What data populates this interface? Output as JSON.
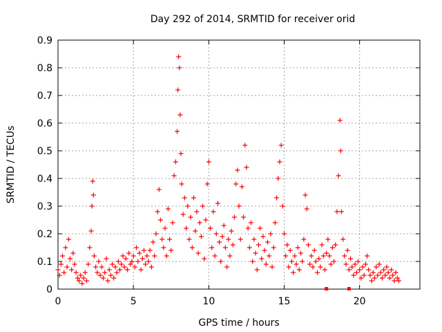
{
  "chart_data": {
    "type": "scatter",
    "title": "Day 292 of 2014, SRMTID for receiver orid",
    "xlabel": "GPS time / hours",
    "ylabel": "SRMTID / TECUs",
    "xlim": [
      0,
      24
    ],
    "ylim": [
      0,
      0.9
    ],
    "xticks": [
      0,
      5,
      10,
      15,
      20
    ],
    "yticks": [
      0,
      0.1,
      0.2,
      0.3,
      0.4,
      0.5,
      0.6,
      0.7,
      0.8,
      0.9
    ],
    "grid": true,
    "marker": "+",
    "color": "#ff0000",
    "series": [
      {
        "name": "SRMTID",
        "points": [
          [
            0.0,
            0.07
          ],
          [
            0.1,
            0.05
          ],
          [
            0.2,
            0.09
          ],
          [
            0.3,
            0.12
          ],
          [
            0.4,
            0.06
          ],
          [
            0.5,
            0.15
          ],
          [
            0.6,
            0.08
          ],
          [
            0.7,
            0.18
          ],
          [
            0.8,
            0.11
          ],
          [
            0.9,
            0.07
          ],
          [
            1.0,
            0.13
          ],
          [
            1.1,
            0.09
          ],
          [
            1.2,
            0.06
          ],
          [
            1.3,
            0.04
          ],
          [
            1.4,
            0.03
          ],
          [
            1.5,
            0.05
          ],
          [
            1.6,
            0.02
          ],
          [
            1.7,
            0.04
          ],
          [
            1.8,
            0.06
          ],
          [
            1.9,
            0.03
          ],
          [
            2.0,
            0.09
          ],
          [
            2.1,
            0.15
          ],
          [
            2.2,
            0.21
          ],
          [
            2.25,
            0.3
          ],
          [
            2.3,
            0.39
          ],
          [
            2.35,
            0.34
          ],
          [
            2.4,
            0.12
          ],
          [
            2.5,
            0.08
          ],
          [
            2.6,
            0.06
          ],
          [
            2.7,
            0.1
          ],
          [
            2.8,
            0.05
          ],
          [
            2.9,
            0.08
          ],
          [
            3.0,
            0.04
          ],
          [
            3.1,
            0.06
          ],
          [
            3.2,
            0.11
          ],
          [
            3.3,
            0.03
          ],
          [
            3.4,
            0.07
          ],
          [
            3.5,
            0.05
          ],
          [
            3.6,
            0.09
          ],
          [
            3.7,
            0.04
          ],
          [
            3.8,
            0.08
          ],
          [
            3.9,
            0.06
          ],
          [
            4.0,
            0.1
          ],
          [
            4.1,
            0.07
          ],
          [
            4.2,
            0.09
          ],
          [
            4.3,
            0.12
          ],
          [
            4.4,
            0.08
          ],
          [
            4.5,
            0.11
          ],
          [
            4.6,
            0.07
          ],
          [
            4.7,
            0.13
          ],
          [
            4.8,
            0.09
          ],
          [
            4.9,
            0.1
          ],
          [
            5.0,
            0.12
          ],
          [
            5.1,
            0.08
          ],
          [
            5.2,
            0.15
          ],
          [
            5.3,
            0.1
          ],
          [
            5.4,
            0.13
          ],
          [
            5.5,
            0.07
          ],
          [
            5.6,
            0.11
          ],
          [
            5.7,
            0.14
          ],
          [
            5.8,
            0.09
          ],
          [
            5.9,
            0.12
          ],
          [
            6.0,
            0.1
          ],
          [
            6.1,
            0.14
          ],
          [
            6.2,
            0.08
          ],
          [
            6.3,
            0.17
          ],
          [
            6.4,
            0.12
          ],
          [
            6.5,
            0.2
          ],
          [
            6.6,
            0.28
          ],
          [
            6.7,
            0.36
          ],
          [
            6.8,
            0.25
          ],
          [
            6.9,
            0.18
          ],
          [
            7.0,
            0.15
          ],
          [
            7.1,
            0.22
          ],
          [
            7.2,
            0.12
          ],
          [
            7.3,
            0.29
          ],
          [
            7.4,
            0.18
          ],
          [
            7.5,
            0.14
          ],
          [
            7.6,
            0.24
          ],
          [
            7.7,
            0.41
          ],
          [
            7.8,
            0.46
          ],
          [
            7.9,
            0.57
          ],
          [
            7.95,
            0.72
          ],
          [
            8.0,
            0.84
          ],
          [
            8.05,
            0.8
          ],
          [
            8.1,
            0.63
          ],
          [
            8.15,
            0.49
          ],
          [
            8.2,
            0.38
          ],
          [
            8.3,
            0.27
          ],
          [
            8.4,
            0.33
          ],
          [
            8.5,
            0.22
          ],
          [
            8.6,
            0.3
          ],
          [
            8.7,
            0.18
          ],
          [
            8.8,
            0.26
          ],
          [
            8.9,
            0.15
          ],
          [
            9.0,
            0.33
          ],
          [
            9.1,
            0.21
          ],
          [
            9.2,
            0.28
          ],
          [
            9.3,
            0.13
          ],
          [
            9.4,
            0.24
          ],
          [
            9.5,
            0.19
          ],
          [
            9.6,
            0.3
          ],
          [
            9.7,
            0.11
          ],
          [
            9.8,
            0.25
          ],
          [
            9.9,
            0.38
          ],
          [
            10.0,
            0.46
          ],
          [
            10.1,
            0.22
          ],
          [
            10.2,
            0.15
          ],
          [
            10.3,
            0.28
          ],
          [
            10.4,
            0.12
          ],
          [
            10.5,
            0.2
          ],
          [
            10.6,
            0.31
          ],
          [
            10.7,
            0.17
          ],
          [
            10.8,
            0.1
          ],
          [
            10.9,
            0.19
          ],
          [
            11.0,
            0.23
          ],
          [
            11.1,
            0.15
          ],
          [
            11.2,
            0.08
          ],
          [
            11.3,
            0.18
          ],
          [
            11.4,
            0.12
          ],
          [
            11.5,
            0.21
          ],
          [
            11.6,
            0.16
          ],
          [
            11.7,
            0.26
          ],
          [
            11.8,
            0.38
          ],
          [
            11.9,
            0.43
          ],
          [
            12.0,
            0.3
          ],
          [
            12.1,
            0.18
          ],
          [
            12.2,
            0.37
          ],
          [
            12.3,
            0.26
          ],
          [
            12.4,
            0.52
          ],
          [
            12.5,
            0.44
          ],
          [
            12.6,
            0.22
          ],
          [
            12.7,
            0.15
          ],
          [
            12.8,
            0.24
          ],
          [
            12.9,
            0.1
          ],
          [
            13.0,
            0.18
          ],
          [
            13.1,
            0.13
          ],
          [
            13.2,
            0.07
          ],
          [
            13.3,
            0.16
          ],
          [
            13.4,
            0.22
          ],
          [
            13.5,
            0.11
          ],
          [
            13.6,
            0.19
          ],
          [
            13.7,
            0.14
          ],
          [
            13.8,
            0.09
          ],
          [
            13.9,
            0.17
          ],
          [
            14.0,
            0.12
          ],
          [
            14.1,
            0.2
          ],
          [
            14.2,
            0.08
          ],
          [
            14.3,
            0.15
          ],
          [
            14.4,
            0.24
          ],
          [
            14.5,
            0.33
          ],
          [
            14.6,
            0.4
          ],
          [
            14.7,
            0.46
          ],
          [
            14.8,
            0.52
          ],
          [
            14.9,
            0.3
          ],
          [
            15.0,
            0.2
          ],
          [
            15.1,
            0.12
          ],
          [
            15.2,
            0.16
          ],
          [
            15.3,
            0.08
          ],
          [
            15.4,
            0.14
          ],
          [
            15.5,
            0.1
          ],
          [
            15.6,
            0.06
          ],
          [
            15.7,
            0.12
          ],
          [
            15.8,
            0.09
          ],
          [
            15.9,
            0.15
          ],
          [
            16.0,
            0.07
          ],
          [
            16.1,
            0.13
          ],
          [
            16.2,
            0.1
          ],
          [
            16.3,
            0.18
          ],
          [
            16.4,
            0.34
          ],
          [
            16.5,
            0.29
          ],
          [
            16.6,
            0.16
          ],
          [
            16.7,
            0.09
          ],
          [
            16.8,
            0.12
          ],
          [
            16.9,
            0.08
          ],
          [
            17.0,
            0.14
          ],
          [
            17.1,
            0.1
          ],
          [
            17.2,
            0.06
          ],
          [
            17.3,
            0.11
          ],
          [
            17.4,
            0.08
          ],
          [
            17.5,
            0.16
          ],
          [
            17.6,
            0.12
          ],
          [
            17.7,
            0.07
          ],
          [
            17.8,
            0.13
          ],
          [
            17.9,
            0.18
          ],
          [
            18.0,
            0.12
          ],
          [
            18.1,
            0.09
          ],
          [
            18.2,
            0.15
          ],
          [
            18.3,
            0.1
          ],
          [
            18.4,
            0.16
          ],
          [
            18.5,
            0.28
          ],
          [
            18.6,
            0.41
          ],
          [
            18.7,
            0.61
          ],
          [
            18.75,
            0.5
          ],
          [
            18.8,
            0.28
          ],
          [
            18.9,
            0.18
          ],
          [
            19.0,
            0.12
          ],
          [
            19.1,
            0.09
          ],
          [
            19.2,
            0.14
          ],
          [
            19.3,
            0.07
          ],
          [
            19.4,
            0.11
          ],
          [
            19.5,
            0.08
          ],
          [
            19.6,
            0.05
          ],
          [
            19.7,
            0.09
          ],
          [
            19.8,
            0.06
          ],
          [
            19.9,
            0.1
          ],
          [
            20.0,
            0.07
          ],
          [
            20.1,
            0.04
          ],
          [
            20.2,
            0.08
          ],
          [
            20.3,
            0.05
          ],
          [
            20.4,
            0.09
          ],
          [
            20.5,
            0.12
          ],
          [
            20.6,
            0.07
          ],
          [
            20.7,
            0.05
          ],
          [
            20.8,
            0.03
          ],
          [
            20.9,
            0.06
          ],
          [
            21.0,
            0.04
          ],
          [
            21.1,
            0.08
          ],
          [
            21.2,
            0.05
          ],
          [
            21.3,
            0.09
          ],
          [
            21.4,
            0.06
          ],
          [
            21.5,
            0.04
          ],
          [
            21.6,
            0.07
          ],
          [
            21.7,
            0.05
          ],
          [
            21.8,
            0.08
          ],
          [
            21.9,
            0.06
          ],
          [
            22.0,
            0.04
          ],
          [
            22.1,
            0.07
          ],
          [
            22.2,
            0.05
          ],
          [
            22.3,
            0.03
          ],
          [
            22.4,
            0.06
          ],
          [
            22.5,
            0.04
          ],
          [
            22.6,
            0.03
          ]
        ]
      }
    ],
    "axis_markers": [
      17.8,
      19.3
    ]
  }
}
